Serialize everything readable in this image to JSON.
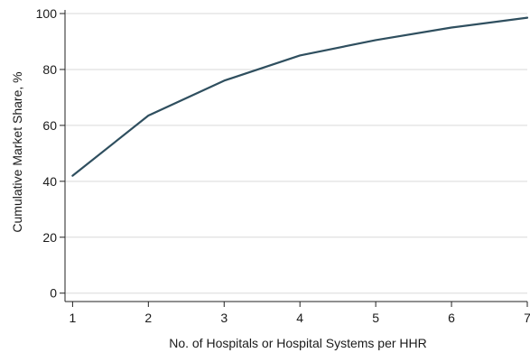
{
  "chart_data": {
    "type": "line",
    "title": "",
    "xlabel": "No. of Hospitals or Hospital Systems per HHR",
    "ylabel": "Cumulative Market Share, %",
    "x": [
      1,
      2,
      3,
      4,
      5,
      6,
      7
    ],
    "series": [
      {
        "values": [
          42,
          63.5,
          76,
          85,
          90.5,
          95,
          98.5
        ]
      }
    ],
    "xlim": [
      0.9,
      7
    ],
    "ylim": [
      -3,
      100
    ],
    "xticks": [
      1,
      2,
      3,
      4,
      5,
      6,
      7
    ],
    "yticks": [
      0,
      20,
      40,
      60,
      80,
      100
    ],
    "grid": "horizontal",
    "line_color": "#2f4f5f"
  }
}
